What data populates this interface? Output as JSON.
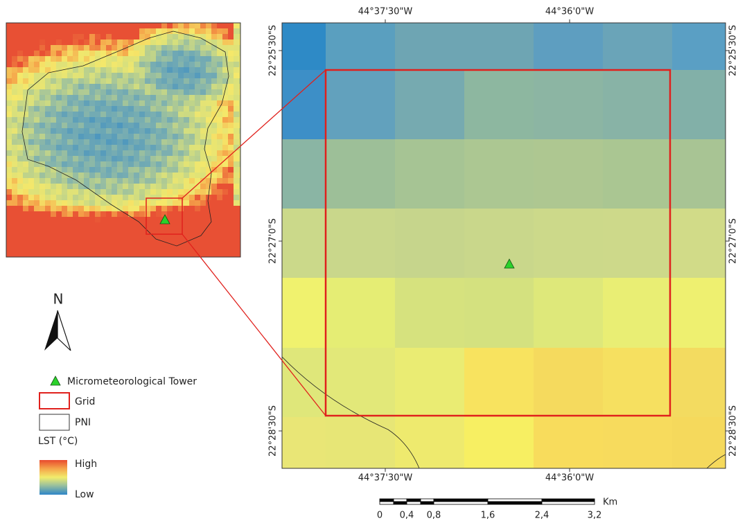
{
  "map": {
    "top_axis_labels": [
      "44°37'30\"W",
      "44°36'0\"W"
    ],
    "bottom_axis_labels": [
      "44°37'30\"W",
      "44°36'0\"W"
    ],
    "left_axis_labels": [
      "22°25'30\"S",
      "22°27'0\"S",
      "22°28'30\"S"
    ],
    "right_axis_labels": [
      "22°25'30\"S",
      "22°27'0\"S",
      "22°28'30\"S"
    ],
    "legend": {
      "north": "N",
      "tower": "Micrometeorological Tower",
      "grid": "Grid",
      "pni": "PNI",
      "lst_title": "LST (°C)",
      "high": "High",
      "low": "Low"
    },
    "scale_bar": {
      "unit": "Km",
      "labels": [
        "0",
        "0,4",
        "0,8",
        "1,6",
        "2,4",
        "3,2"
      ]
    }
  }
}
